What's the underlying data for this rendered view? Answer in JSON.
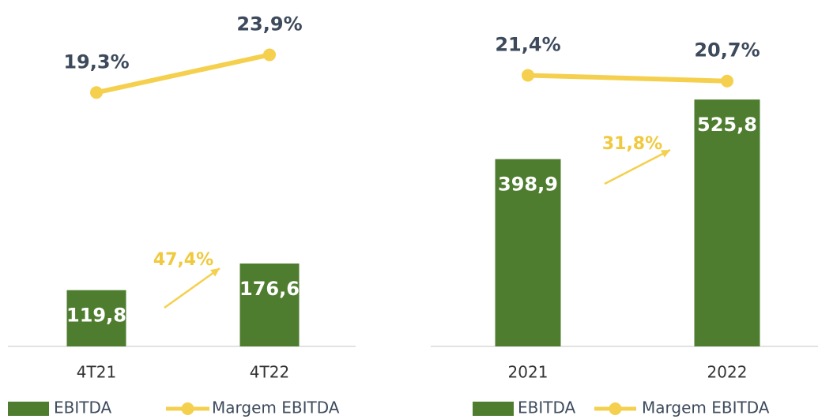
{
  "chart_data": [
    {
      "type": "bar",
      "categories": [
        "4T21",
        "4T22"
      ],
      "series": [
        {
          "name": "EBITDA",
          "color": "#4e7d2f",
          "values": [
            119.8,
            176.6
          ],
          "value_labels": [
            "119,8",
            "176,6"
          ]
        },
        {
          "name": "Margem EBITDA",
          "type": "line",
          "color": "#f5d04e",
          "values": [
            19.3,
            23.9
          ],
          "value_labels": [
            "19,3%",
            "23,9%"
          ]
        }
      ],
      "annotations": [
        {
          "text": "47,4%"
        }
      ]
    },
    {
      "type": "bar",
      "categories": [
        "2021",
        "2022"
      ],
      "series": [
        {
          "name": "EBITDA",
          "color": "#4e7d2f",
          "values": [
            398.9,
            525.8
          ],
          "value_labels": [
            "398,9",
            "525,8"
          ]
        },
        {
          "name": "Margem EBITDA",
          "type": "line",
          "color": "#f5d04e",
          "values": [
            21.4,
            20.7
          ],
          "value_labels": [
            "21,4%",
            "20,7%"
          ]
        }
      ],
      "annotations": [
        {
          "text": "31,8%"
        }
      ]
    }
  ]
}
